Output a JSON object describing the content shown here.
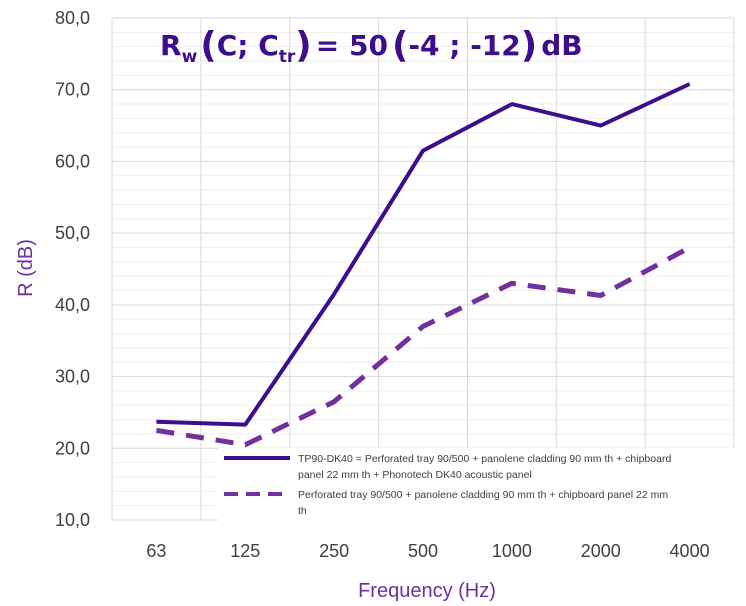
{
  "chart_data": {
    "type": "line",
    "title": {
      "main": "R",
      "main_sub": "w",
      "paren_open": "(",
      "c": "C; C",
      "c_sub": "tr",
      "paren_close": ")",
      "equals_value": "= 50",
      "bracket_open": "(",
      "terms": "-4 ; -12",
      "bracket_close": ")",
      "unit": "dB"
    },
    "xlabel": "Frequency (Hz)",
    "ylabel": "R (dB)",
    "categories": [
      "63",
      "125",
      "250",
      "500",
      "1000",
      "2000",
      "4000"
    ],
    "y_ticks": [
      "10,0",
      "20,0",
      "30,0",
      "40,0",
      "50,0",
      "60,0",
      "70,0",
      "80,0"
    ],
    "ylim": [
      10,
      80
    ],
    "grid": true,
    "legend_position": "bottom-right inside plot",
    "series": [
      {
        "name": "TP90-DK40 = Perforated tray 90/500 + panolene cladding 90 mm th + chipboard panel 22 mm th + Phonotech DK40 acoustic panel",
        "legend_lines": [
          "TP90-DK40 = Perforated tray 90/500 + panolene cladding 90 mm th + chipboard",
          "panel 22 mm th + Phonotech DK40 acoustic panel"
        ],
        "style": "solid",
        "color": "#3c0d8c",
        "values": [
          23.7,
          23.3,
          41.5,
          61.5,
          68.0,
          65.0,
          70.8
        ]
      },
      {
        "name": "Perforated tray 90/500 + panolene cladding 90 mm th + chipboard panel 22 mm th",
        "legend_lines": [
          "Perforated tray 90/500 + panolene cladding 90 mm th + chipboard panel 22 mm",
          "th"
        ],
        "style": "dashed",
        "color": "#7030a0",
        "values": [
          22.5,
          20.5,
          26.5,
          37.0,
          43.0,
          41.3,
          48.0
        ]
      }
    ],
    "colors": {
      "title": "#3c0d8c",
      "axis_title": "#7030a0",
      "grid": "#d9d9d9",
      "ticks": "#404040"
    }
  }
}
